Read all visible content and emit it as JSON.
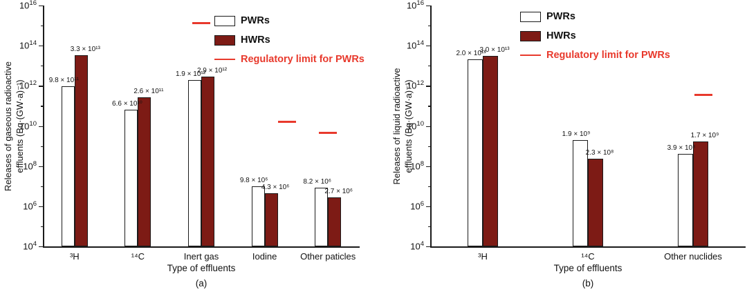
{
  "figure": {
    "background": "#ffffff",
    "axis_color": "#1a1a1a",
    "colors": {
      "pwr_fill": "#ffffff",
      "hwr_fill": "#7d1b15",
      "bar_border": "#1a1a1a",
      "regulatory_red": "#e8392c"
    },
    "legend": {
      "pwr_label": "PWRs",
      "hwr_label": "HWRs",
      "limit_label": "Regulatory limit for PWRs"
    }
  },
  "chart_data": [
    {
      "type": "bar",
      "panel_label": "(a)",
      "yscale": "log",
      "ylim": [
        10000,
        1e+16
      ],
      "ylabel_lines": [
        "Releases of gaseous radioactive",
        "effluents (Bq·(GW·a)⁻¹)"
      ],
      "xlabel": "Type of effluents",
      "ytick_exponents": [
        4,
        6,
        8,
        10,
        12,
        14,
        16
      ],
      "categories": [
        "³H",
        "¹⁴C",
        "Inert gas",
        "Iodine",
        "Other paticles"
      ],
      "series": [
        {
          "name": "PWRs",
          "values": [
            980000000000.0,
            66000000000.0,
            1900000000000.0,
            9800000.0,
            8200000.0
          ],
          "labels": [
            "9.8 × 10¹¹",
            "6.6 × 10¹⁰",
            "1.9 × 10¹²",
            "9.8 × 10⁶",
            "8.2 × 10⁶"
          ]
        },
        {
          "name": "HWRs",
          "values": [
            33000000000000.0,
            260000000000.0,
            2900000000000.0,
            4300000.0,
            2700000.0
          ],
          "labels": [
            "3.3 × 10¹³",
            "2.6 × 10¹¹",
            "2.9 × 10¹²",
            "4.3 × 10⁶",
            "2.7 × 10⁶"
          ]
        }
      ],
      "regulatory_limit_markers": [
        {
          "category_index": 2,
          "value": 1500000000000000.0,
          "dx": 0
        },
        {
          "category_index": 3,
          "value": 18000000000.0,
          "dx": 32
        },
        {
          "category_index": 4,
          "value": 5000000000.0,
          "dx": 0
        }
      ]
    },
    {
      "type": "bar",
      "panel_label": "(b)",
      "yscale": "log",
      "ylim": [
        10000,
        1e+16
      ],
      "ylabel_lines": [
        "Releases of liquid radioactive",
        "effluents (Bq·(GW·a)⁻¹)"
      ],
      "xlabel": "Type of effluents",
      "ytick_exponents": [
        4,
        6,
        8,
        10,
        12,
        14,
        16
      ],
      "categories": [
        "³H",
        "¹⁴C",
        "Other nuclides"
      ],
      "series": [
        {
          "name": "PWRs",
          "values": [
            20000000000000.0,
            1900000000.0,
            390000000.0
          ],
          "labels": [
            "2.0 × 10¹³",
            "1.9 × 10⁹",
            "3.9 × 10⁸"
          ]
        },
        {
          "name": "HWRs",
          "values": [
            30000000000000.0,
            230000000.0,
            1700000000.0
          ],
          "labels": [
            "3.0 × 10¹³",
            "2.3 × 10⁸",
            "1.7 × 10⁹"
          ]
        }
      ],
      "regulatory_limit_markers": [
        {
          "category_index": 2,
          "value": 400000000000.0,
          "dx": 15
        }
      ]
    }
  ]
}
